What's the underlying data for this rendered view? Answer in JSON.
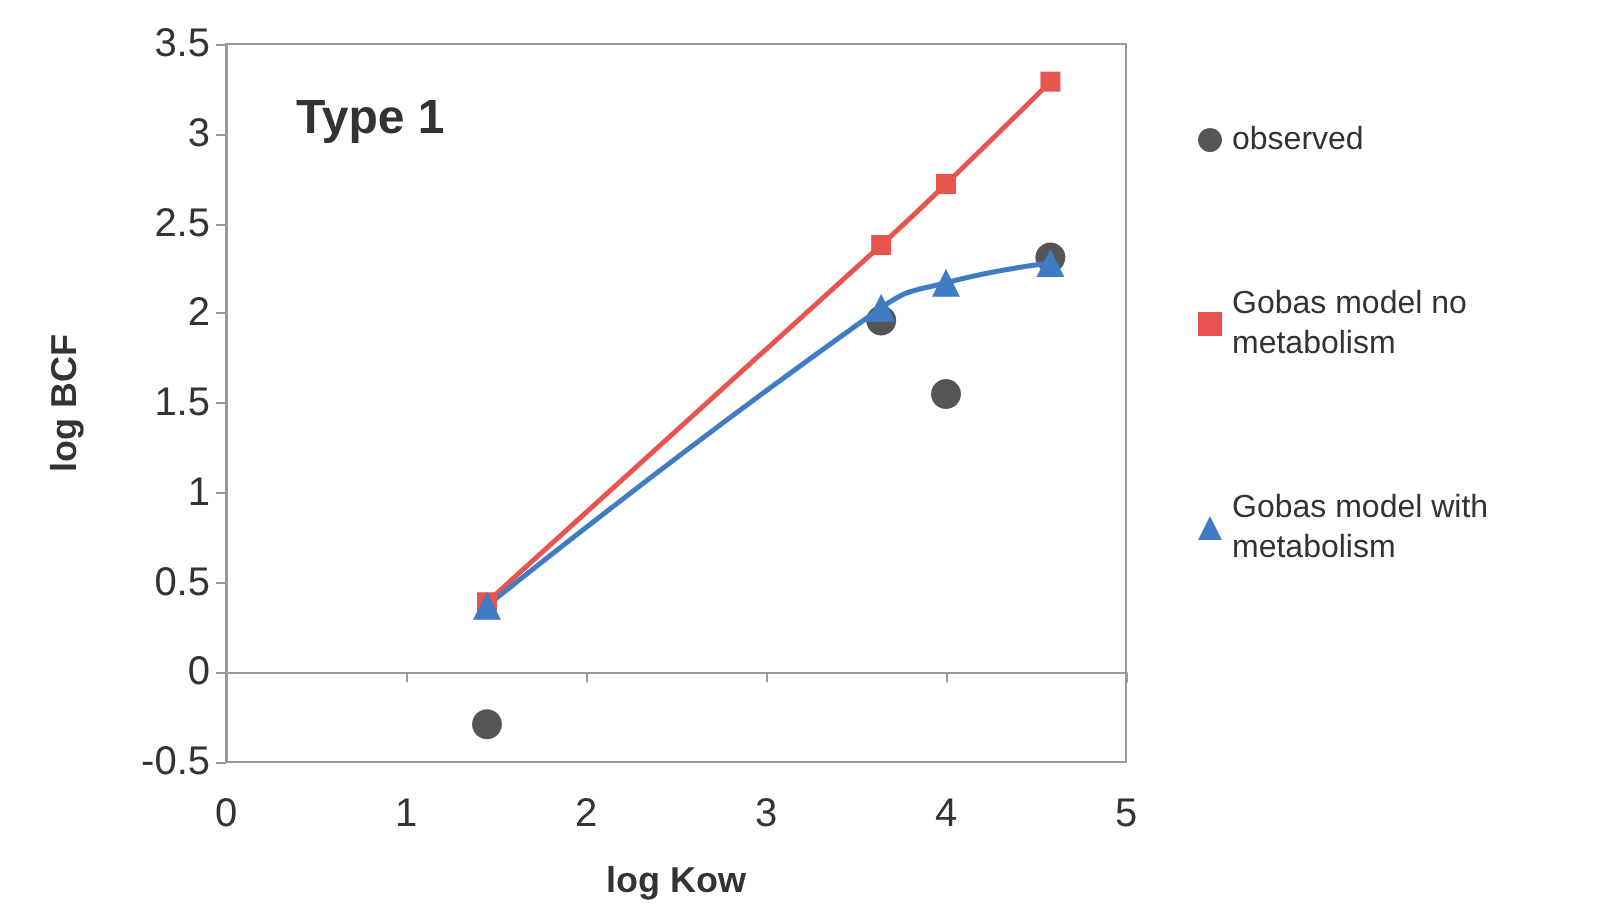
{
  "chart_data": {
    "type": "line",
    "title": "Type 1",
    "xlabel": "log Kow",
    "ylabel": "log BCF",
    "xlim": [
      0,
      5
    ],
    "xticks": [
      0,
      1,
      2,
      3,
      4,
      5
    ],
    "ylim": [
      -0.5,
      3.5
    ],
    "yticks": [
      -0.5,
      0,
      0.5,
      1,
      1.5,
      2,
      2.5,
      3,
      3.5
    ],
    "legend": "right",
    "line_style": "solid",
    "series": [
      {
        "name": "observed",
        "type": "scatter",
        "marker": "circle",
        "color": "#2b2b2e",
        "x": [
          1.45,
          3.64,
          4.0,
          4.58
        ],
        "values": [
          -0.29,
          1.96,
          1.55,
          2.31
        ]
      },
      {
        "name": "Gobas model no metabolism",
        "marker": "square",
        "color": "#e8554e",
        "x": [
          1.45,
          3.64,
          4.0,
          4.58
        ],
        "values": [
          0.39,
          2.38,
          2.72,
          3.29
        ]
      },
      {
        "name": "Gobas model with metabolism",
        "marker": "triangle",
        "color": "#3f7cc4",
        "x": [
          1.45,
          3.64,
          4.0,
          4.58
        ],
        "values": [
          0.37,
          2.03,
          2.17,
          2.28
        ]
      }
    ]
  }
}
